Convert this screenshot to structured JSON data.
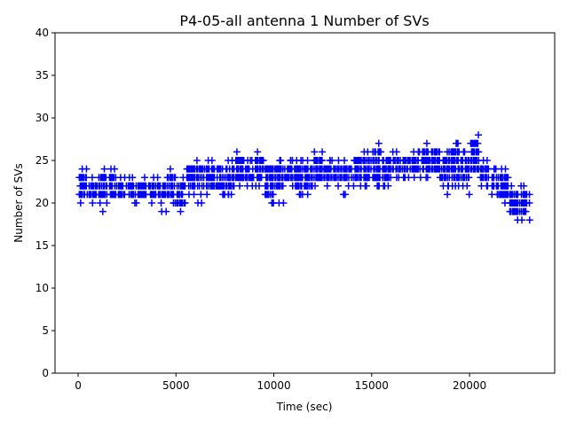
{
  "chart_data": {
    "type": "scatter",
    "title": "P4-05-all antenna 1 Number of SVs",
    "xlabel": "Time (sec)",
    "ylabel": "Number of SVs",
    "xlim": [
      -1180,
      24350
    ],
    "ylim": [
      0,
      40
    ],
    "xticks": [
      0,
      5000,
      10000,
      15000,
      20000
    ],
    "xtick_labels": [
      "0",
      "5000",
      "10000",
      "15000",
      "20000"
    ],
    "yticks": [
      0,
      5,
      10,
      15,
      20,
      25,
      30,
      35,
      40
    ],
    "ytick_labels": [
      "0",
      "5",
      "10",
      "15",
      "20",
      "25",
      "30",
      "35",
      "40"
    ],
    "marker": "+",
    "color": "#0000ff",
    "grid": false,
    "bin_seconds": 500,
    "time_end": 23100,
    "bins_note": "per 500 s bin: [bin start time, dense min SVs, dense max SVs, [sparse SV values]]",
    "bins": [
      [
        0,
        21,
        23,
        [
          24,
          20
        ]
      ],
      [
        500,
        21,
        22,
        [
          20,
          23
        ]
      ],
      [
        1000,
        21,
        23,
        [
          24,
          19,
          20
        ]
      ],
      [
        1500,
        21,
        23,
        [
          24
        ]
      ],
      [
        2000,
        21,
        22,
        [
          23
        ]
      ],
      [
        2500,
        21,
        22,
        [
          23,
          20
        ]
      ],
      [
        3000,
        21,
        22,
        [
          23
        ]
      ],
      [
        3500,
        21,
        22,
        [
          23,
          20
        ]
      ],
      [
        4000,
        21,
        22,
        [
          19,
          20,
          23
        ]
      ],
      [
        4500,
        21,
        23,
        [
          24,
          20
        ]
      ],
      [
        5000,
        20,
        22,
        [
          19,
          23
        ]
      ],
      [
        5500,
        22,
        24,
        [
          21
        ]
      ],
      [
        6000,
        22,
        24,
        [
          25,
          20,
          21
        ]
      ],
      [
        6500,
        22,
        24,
        [
          25,
          21
        ]
      ],
      [
        7000,
        22,
        24,
        [
          21
        ]
      ],
      [
        7500,
        22,
        24,
        [
          25,
          21
        ]
      ],
      [
        8000,
        23,
        25,
        [
          26,
          22
        ]
      ],
      [
        8500,
        23,
        24,
        [
          25,
          22
        ]
      ],
      [
        9000,
        23,
        25,
        [
          26,
          22
        ]
      ],
      [
        9500,
        21,
        24,
        [
          20
        ]
      ],
      [
        10000,
        22,
        24,
        [
          20,
          25
        ]
      ],
      [
        10500,
        23,
        24,
        [
          22,
          25
        ]
      ],
      [
        11000,
        22,
        24,
        [
          25,
          21
        ]
      ],
      [
        11500,
        22,
        24,
        [
          25,
          21
        ]
      ],
      [
        12000,
        23,
        25,
        [
          26,
          22
        ]
      ],
      [
        12500,
        23,
        24,
        [
          25,
          22
        ]
      ],
      [
        13000,
        23,
        24,
        [
          25,
          22
        ]
      ],
      [
        13500,
        23,
        24,
        [
          25,
          22,
          21
        ]
      ],
      [
        14000,
        23,
        25,
        [
          22
        ]
      ],
      [
        14500,
        23,
        25,
        [
          26,
          22
        ]
      ],
      [
        15000,
        23,
        26,
        [
          27,
          22
        ]
      ],
      [
        15500,
        23,
        25,
        [
          22
        ]
      ],
      [
        16000,
        24,
        25,
        [
          26,
          23
        ]
      ],
      [
        16500,
        24,
        25,
        [
          23
        ]
      ],
      [
        17000,
        24,
        25,
        [
          26,
          23
        ]
      ],
      [
        17500,
        24,
        26,
        [
          27,
          23
        ]
      ],
      [
        18000,
        24,
        26,
        [
          23
        ]
      ],
      [
        18500,
        23,
        25,
        [
          26,
          22,
          21
        ]
      ],
      [
        19000,
        23,
        26,
        [
          27,
          22
        ]
      ],
      [
        19500,
        23,
        25,
        [
          26,
          22,
          21
        ]
      ],
      [
        20000,
        24,
        27,
        [
          28,
          25
        ]
      ],
      [
        20500,
        23,
        24,
        [
          22,
          25
        ]
      ],
      [
        21000,
        22,
        23,
        [
          21,
          24
        ]
      ],
      [
        21500,
        21,
        23,
        [
          20,
          24
        ]
      ],
      [
        22000,
        19,
        21,
        [
          22,
          18
        ]
      ],
      [
        22500,
        19,
        21,
        [
          22,
          18
        ]
      ],
      [
        23000,
        20,
        21,
        [
          18
        ]
      ]
    ]
  }
}
